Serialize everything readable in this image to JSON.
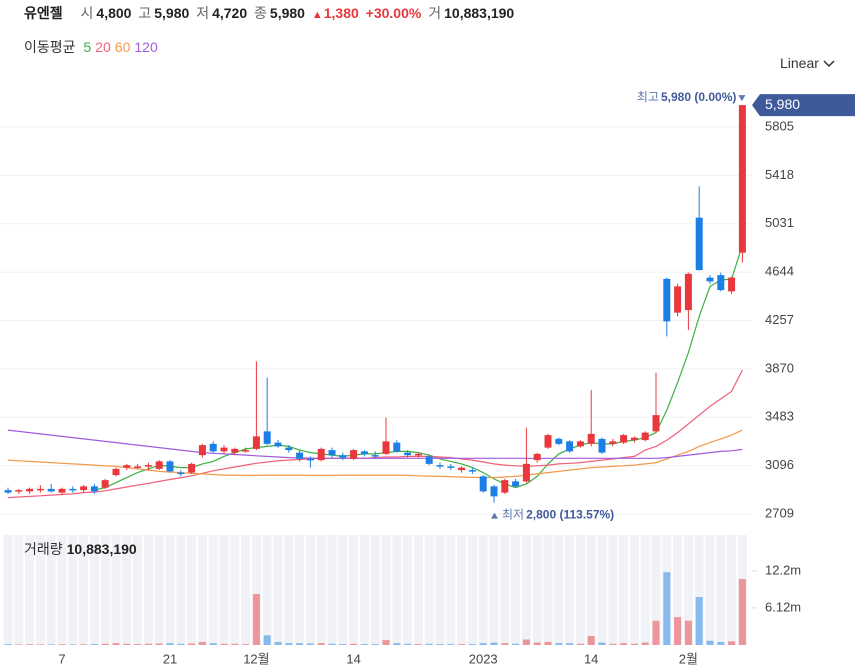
{
  "header": {
    "name": "유엔젤",
    "open_label": "시",
    "open": "4,800",
    "high_label": "고",
    "high": "5,980",
    "low_label": "저",
    "low": "4,720",
    "close_label": "종",
    "close": "5,980",
    "change": "1,380",
    "change_pct": "+30.00%",
    "volume_label": "거",
    "volume": "10,883,190"
  },
  "ma_legend_title": "이동평균",
  "scale_selector": "Linear",
  "chart_data": [
    {
      "type": "candlestick",
      "categories": [
        null,
        null,
        null,
        null,
        null,
        "7",
        null,
        null,
        null,
        null,
        null,
        null,
        null,
        null,
        null,
        "21",
        null,
        null,
        null,
        null,
        null,
        null,
        null,
        "12월",
        null,
        null,
        null,
        null,
        null,
        null,
        null,
        null,
        "14",
        null,
        null,
        null,
        null,
        null,
        null,
        null,
        null,
        null,
        null,
        null,
        "2023",
        null,
        null,
        null,
        null,
        null,
        null,
        null,
        null,
        null,
        "14",
        null,
        null,
        null,
        null,
        null,
        null,
        null,
        null,
        "2월",
        null,
        null,
        null,
        null,
        null
      ],
      "open": [
        2900,
        2890,
        2890,
        2900,
        2910,
        2880,
        2910,
        2900,
        2930,
        2920,
        3020,
        3080,
        3090,
        3090,
        3070,
        3130,
        3040,
        3040,
        3180,
        3270,
        3210,
        3200,
        3220,
        3230,
        3370,
        3280,
        3240,
        3200,
        3150,
        3140,
        3220,
        3180,
        3150,
        3210,
        3180,
        3190,
        3280,
        3200,
        3180,
        3170,
        3100,
        3090,
        3060,
        3060,
        3010,
        2930,
        2880,
        2970,
        2970,
        3140,
        3240,
        3310,
        3290,
        3250,
        3270,
        3310,
        3270,
        3280,
        3300,
        3300,
        3370,
        4590,
        4320,
        4340,
        5080,
        4600,
        4620,
        4490,
        4800
      ],
      "high": [
        2920,
        2910,
        2920,
        2940,
        2950,
        2920,
        2930,
        2940,
        2950,
        2990,
        3080,
        3110,
        3110,
        3120,
        3140,
        3140,
        3060,
        3120,
        3270,
        3290,
        3260,
        3240,
        3240,
        3930,
        3800,
        3300,
        3260,
        3220,
        3170,
        3240,
        3240,
        3200,
        3230,
        3220,
        3210,
        3480,
        3300,
        3220,
        3200,
        3180,
        3120,
        3110,
        3090,
        3080,
        3020,
        2940,
        2990,
        2990,
        3400,
        3200,
        3350,
        3320,
        3300,
        3300,
        3700,
        3320,
        3310,
        3350,
        3330,
        3370,
        3840,
        4600,
        4550,
        4640,
        5330,
        4620,
        4640,
        4610,
        5980
      ],
      "low": [
        2870,
        2870,
        2870,
        2880,
        2880,
        2860,
        2880,
        2880,
        2870,
        2910,
        3010,
        3060,
        3070,
        3060,
        3060,
        3040,
        3010,
        3030,
        3160,
        3200,
        3190,
        3180,
        3200,
        3220,
        3260,
        3240,
        3200,
        3130,
        3080,
        3130,
        3160,
        3140,
        3140,
        3170,
        3150,
        3180,
        3200,
        3160,
        3160,
        3100,
        3070,
        3060,
        3040,
        3030,
        2880,
        2800,
        2870,
        2920,
        2960,
        3120,
        3230,
        3260,
        3200,
        3240,
        3250,
        3190,
        3250,
        3270,
        3280,
        3290,
        3360,
        4130,
        4290,
        4180,
        4660,
        4550,
        4490,
        4470,
        4720
      ],
      "close": [
        2880,
        2900,
        2910,
        2910,
        2890,
        2910,
        2900,
        2930,
        2890,
        2980,
        3070,
        3100,
        3090,
        3100,
        3130,
        3050,
        3030,
        3110,
        3260,
        3210,
        3240,
        3230,
        3220,
        3330,
        3270,
        3250,
        3220,
        3150,
        3140,
        3230,
        3180,
        3160,
        3220,
        3190,
        3170,
        3290,
        3210,
        3180,
        3190,
        3110,
        3090,
        3080,
        3080,
        3050,
        2890,
        2850,
        2980,
        2930,
        3110,
        3190,
        3340,
        3270,
        3210,
        3290,
        3350,
        3200,
        3290,
        3340,
        3320,
        3360,
        3500,
        4250,
        4530,
        4630,
        4660,
        4570,
        4500,
        4600,
        5980
      ],
      "up_color": "#e8383d",
      "down_color": "#1b7fe6",
      "series": [
        {
          "name": "5",
          "color": "#3cb043",
          "values": [
            null,
            null,
            null,
            null,
            null,
            null,
            null,
            null,
            2900,
            2920,
            2960,
            3000,
            3040,
            3070,
            3100,
            3090,
            3080,
            3080,
            3110,
            3130,
            3170,
            3200,
            3230,
            3240,
            3250,
            3260,
            3250,
            3220,
            3200,
            3190,
            3180,
            3170,
            3180,
            3190,
            3190,
            3200,
            3210,
            3210,
            3200,
            3180,
            3150,
            3130,
            3110,
            3080,
            3040,
            2990,
            2950,
            2920,
            2950,
            3010,
            3110,
            3190,
            3230,
            3260,
            3280,
            3270,
            3270,
            3290,
            3300,
            3320,
            3360,
            3540,
            3760,
            4000,
            4290,
            4530,
            4580,
            4590,
            4860
          ]
        },
        {
          "name": "20",
          "color": "#f0607a",
          "values": [
            2840,
            2845,
            2850,
            2855,
            2860,
            2865,
            2870,
            2880,
            2885,
            2895,
            2910,
            2925,
            2940,
            2955,
            2970,
            2985,
            3000,
            3015,
            3035,
            3055,
            3070,
            3085,
            3100,
            3115,
            3125,
            3135,
            3140,
            3145,
            3150,
            3155,
            3155,
            3155,
            3155,
            3155,
            3160,
            3165,
            3165,
            3170,
            3170,
            3170,
            3165,
            3160,
            3150,
            3140,
            3125,
            3110,
            3100,
            3095,
            3090,
            3095,
            3100,
            3110,
            3115,
            3120,
            3130,
            3140,
            3150,
            3160,
            3170,
            3220,
            3250,
            3300,
            3360,
            3430,
            3500,
            3570,
            3630,
            3690,
            3860
          ]
        },
        {
          "name": "60",
          "color": "#f39a4a",
          "values": [
            3140,
            3135,
            3130,
            3125,
            3120,
            3115,
            3110,
            3105,
            3100,
            3095,
            3090,
            3080,
            3070,
            3060,
            3050,
            3045,
            3040,
            3035,
            3030,
            3025,
            3020,
            3020,
            3018,
            3018,
            3020,
            3020,
            3020,
            3020,
            3018,
            3018,
            3018,
            3020,
            3020,
            3020,
            3020,
            3020,
            3020,
            3018,
            3015,
            3012,
            3010,
            3008,
            3005,
            3002,
            3000,
            3000,
            3005,
            3010,
            3020,
            3030,
            3040,
            3050,
            3060,
            3070,
            3080,
            3085,
            3090,
            3095,
            3100,
            3110,
            3120,
            3150,
            3180,
            3210,
            3250,
            3280,
            3310,
            3340,
            3380
          ]
        },
        {
          "name": "120",
          "color": "#a25ce0",
          "values": [
            3380,
            3370,
            3360,
            3350,
            3340,
            3330,
            3320,
            3310,
            3300,
            3290,
            3280,
            3270,
            3260,
            3250,
            3240,
            3230,
            3220,
            3210,
            3200,
            3195,
            3190,
            3185,
            3180,
            3175,
            3170,
            3165,
            3160,
            3158,
            3156,
            3155,
            3155,
            3155,
            3155,
            3155,
            3155,
            3155,
            3155,
            3155,
            3155,
            3155,
            3155,
            3155,
            3155,
            3155,
            3155,
            3155,
            3155,
            3155,
            3155,
            3155,
            3155,
            3155,
            3155,
            3155,
            3155,
            3155,
            3155,
            3155,
            3155,
            3155,
            3155,
            3160,
            3170,
            3180,
            3190,
            3200,
            3210,
            3215,
            3225
          ]
        }
      ],
      "ylim": [
        2597,
        6141
      ],
      "yticks": [
        2709,
        3096,
        3483,
        3870,
        4257,
        4644,
        5031,
        5418,
        5805
      ],
      "grid": true,
      "price_tag": "5,980",
      "annotations": [
        {
          "text": "최고",
          "value_label": "5,980 (0.00%)"
        },
        {
          "text": "최저",
          "value_label": "2,800 (113.57%)"
        }
      ]
    },
    {
      "type": "bar",
      "title": "거래량",
      "title_value": "10,883,190",
      "values": [
        0.15,
        0.1,
        0.12,
        0.1,
        0.1,
        0.12,
        0.1,
        0.12,
        0.15,
        0.2,
        0.3,
        0.2,
        0.15,
        0.2,
        0.25,
        0.3,
        0.2,
        0.25,
        0.5,
        0.3,
        0.2,
        0.2,
        0.15,
        8.4,
        1.6,
        0.5,
        0.3,
        0.3,
        0.25,
        0.3,
        0.2,
        0.15,
        0.2,
        0.15,
        0.15,
        0.8,
        0.3,
        0.2,
        0.15,
        0.2,
        0.15,
        0.15,
        0.15,
        0.15,
        0.3,
        0.4,
        0.3,
        0.2,
        0.9,
        0.4,
        0.5,
        0.3,
        0.3,
        0.2,
        1.5,
        0.4,
        0.2,
        0.3,
        0.2,
        0.4,
        4.0,
        12.0,
        4.6,
        4.0,
        7.9,
        0.7,
        0.5,
        0.6,
        10.88
      ],
      "ylim": [
        0,
        17.8
      ],
      "yticks": [
        {
          "value": 6.12,
          "label": "6.12m"
        },
        {
          "value": 12.2,
          "label": "12.2m"
        }
      ]
    }
  ]
}
